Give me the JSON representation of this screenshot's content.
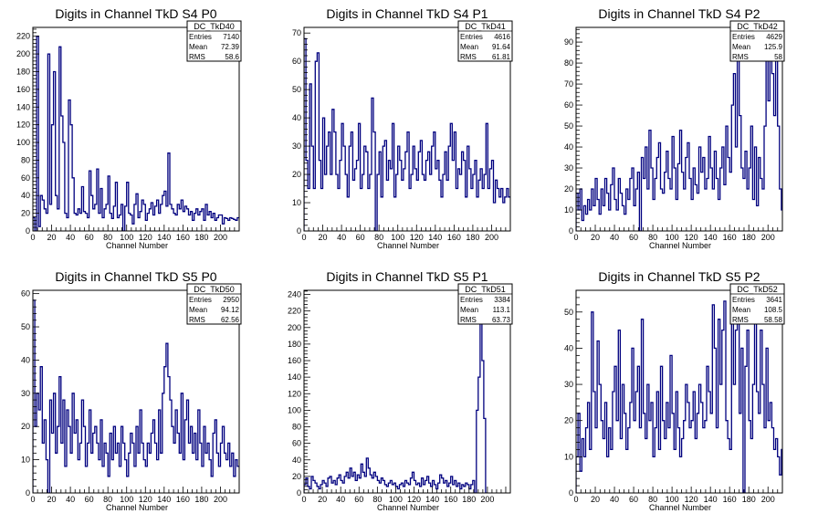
{
  "colors": {
    "histogram": "#00007f",
    "frame": "#000000",
    "background": "#ffffff"
  },
  "chart_data": [
    {
      "type": "histogram",
      "title": "Digits in Channel TkD S4 P0",
      "xlabel": "Channel Number",
      "ylabel": "",
      "xlim": [
        0,
        220
      ],
      "ylim": [
        0,
        230
      ],
      "xticks": [
        0,
        20,
        40,
        60,
        80,
        100,
        120,
        140,
        160,
        180,
        200
      ],
      "yticks": [
        0,
        20,
        40,
        60,
        80,
        100,
        120,
        140,
        160,
        180,
        200,
        220
      ],
      "stats": {
        "name": "DC_TkD40",
        "rows": [
          [
            "Entries",
            "7140"
          ],
          [
            "Mean",
            "72.39"
          ],
          [
            "RMS",
            "58.6"
          ]
        ]
      },
      "bin_width": 2,
      "values": [
        15,
        0,
        220,
        5,
        40,
        35,
        25,
        20,
        200,
        30,
        120,
        180,
        40,
        25,
        208,
        130,
        100,
        20,
        15,
        148,
        120,
        60,
        20,
        18,
        25,
        20,
        50,
        22,
        20,
        15,
        68,
        40,
        25,
        30,
        70,
        20,
        48,
        15,
        25,
        30,
        62,
        20,
        14,
        28,
        55,
        15,
        18,
        30,
        0,
        28,
        55,
        20,
        18,
        8,
        30,
        42,
        15,
        22,
        35,
        30,
        12,
        20,
        25,
        32,
        18,
        28,
        35,
        20,
        30,
        40,
        45,
        28,
        88,
        30,
        25,
        20,
        18,
        30,
        25,
        35,
        22,
        28,
        25,
        18,
        22,
        12,
        20,
        25,
        18,
        22,
        25,
        12,
        30,
        18,
        22,
        15,
        20,
        12,
        15,
        18,
        18,
        8,
        15,
        14,
        12,
        15,
        14,
        13,
        12,
        15
      ]
    },
    {
      "type": "histogram",
      "title": "Digits in Channel TkD S4 P1",
      "xlabel": "Channel Number",
      "ylabel": "",
      "xlim": [
        0,
        220
      ],
      "ylim": [
        0,
        72
      ],
      "xticks": [
        0,
        20,
        40,
        60,
        80,
        100,
        120,
        140,
        160,
        180,
        200
      ],
      "yticks": [
        0,
        10,
        20,
        30,
        40,
        50,
        60,
        70
      ],
      "stats": {
        "name": "DC_TkD41",
        "rows": [
          [
            "Entries",
            "4616"
          ],
          [
            "Mean",
            "91.64"
          ],
          [
            "RMS",
            "61.81"
          ]
        ]
      },
      "bin_width": 2,
      "values": [
        68,
        25,
        15,
        52,
        30,
        15,
        60,
        63,
        25,
        15,
        40,
        20,
        30,
        35,
        20,
        43,
        35,
        20,
        15,
        25,
        38,
        30,
        20,
        12,
        30,
        35,
        18,
        22,
        25,
        38,
        15,
        20,
        30,
        28,
        15,
        20,
        47,
        35,
        0,
        20,
        28,
        12,
        30,
        32,
        18,
        25,
        22,
        38,
        12,
        20,
        30,
        25,
        18,
        22,
        28,
        35,
        15,
        20,
        30,
        22,
        18,
        28,
        32,
        20,
        18,
        25,
        28,
        20,
        30,
        35,
        22,
        25,
        18,
        12,
        20,
        28,
        18,
        30,
        38,
        25,
        35,
        15,
        22,
        20,
        28,
        25,
        12,
        30,
        22,
        15,
        20,
        25,
        12,
        18,
        22,
        15,
        20,
        38,
        15,
        22,
        25,
        10,
        18,
        15,
        12,
        15,
        10,
        12,
        15,
        12
      ]
    },
    {
      "type": "histogram",
      "title": "Digits in Channel TkD S4 P2",
      "xlabel": "Channel Number",
      "ylabel": "",
      "xlim": [
        0,
        215
      ],
      "ylim": [
        0,
        97
      ],
      "xticks": [
        0,
        20,
        40,
        60,
        80,
        100,
        120,
        140,
        160,
        180,
        200
      ],
      "yticks": [
        0,
        10,
        20,
        30,
        40,
        50,
        60,
        70,
        80,
        90
      ],
      "stats": {
        "name": "DC_TkD42",
        "rows": [
          [
            "Entries",
            "4629"
          ],
          [
            "Mean",
            "125.9"
          ],
          [
            "RMS",
            "58"
          ]
        ]
      },
      "bin_width": 2,
      "values": [
        18,
        10,
        20,
        5,
        12,
        8,
        15,
        10,
        20,
        12,
        25,
        15,
        8,
        20,
        12,
        25,
        18,
        10,
        22,
        30,
        15,
        10,
        25,
        18,
        12,
        8,
        20,
        15,
        25,
        30,
        12,
        20,
        28,
        0,
        35,
        25,
        40,
        20,
        48,
        30,
        15,
        25,
        35,
        42,
        20,
        18,
        28,
        38,
        25,
        20,
        45,
        30,
        15,
        32,
        48,
        28,
        20,
        35,
        42,
        25,
        15,
        30,
        22,
        18,
        40,
        28,
        35,
        20,
        25,
        45,
        30,
        20,
        38,
        25,
        15,
        30,
        40,
        22,
        50,
        35,
        28,
        60,
        75,
        40,
        90,
        55,
        30,
        25,
        38,
        20,
        30,
        50,
        15,
        40,
        12,
        35,
        25,
        20,
        50,
        85,
        62,
        82,
        75,
        55,
        92,
        50,
        20,
        10,
        5,
        2
      ]
    },
    {
      "type": "histogram",
      "title": "Digits in Channel TkD S5 P0",
      "xlabel": "Channel Number",
      "ylabel": "",
      "xlim": [
        0,
        220
      ],
      "ylim": [
        0,
        61
      ],
      "xticks": [
        0,
        20,
        40,
        60,
        80,
        100,
        120,
        140,
        160,
        180,
        200
      ],
      "yticks": [
        0,
        10,
        20,
        30,
        40,
        50,
        60
      ],
      "stats": {
        "name": "DC_TkD50",
        "rows": [
          [
            "Entries",
            "2950"
          ],
          [
            "Mean",
            "94.12"
          ],
          [
            "RMS",
            "62.56"
          ]
        ]
      },
      "bin_width": 2,
      "values": [
        58,
        20,
        30,
        25,
        38,
        15,
        22,
        10,
        0,
        28,
        18,
        30,
        12,
        20,
        35,
        15,
        28,
        8,
        25,
        20,
        12,
        30,
        18,
        22,
        10,
        15,
        28,
        20,
        8,
        15,
        25,
        12,
        18,
        20,
        15,
        10,
        22,
        8,
        15,
        12,
        5,
        18,
        10,
        20,
        12,
        15,
        8,
        20,
        15,
        10,
        5,
        12,
        18,
        15,
        8,
        20,
        12,
        25,
        15,
        10,
        8,
        15,
        12,
        18,
        22,
        15,
        10,
        25,
        12,
        30,
        38,
        45,
        35,
        28,
        20,
        15,
        25,
        18,
        12,
        30,
        10,
        22,
        28,
        15,
        20,
        12,
        18,
        10,
        25,
        15,
        8,
        20,
        12,
        15,
        10,
        5,
        18,
        22,
        12,
        8,
        15,
        20,
        12,
        10,
        15,
        8,
        12,
        5,
        10,
        8
      ]
    },
    {
      "type": "histogram",
      "title": "Digits in Channel TkD S5 P1",
      "xlabel": "Channel Number",
      "ylabel": "",
      "xlim": [
        0,
        225
      ],
      "ylim": [
        0,
        245
      ],
      "xticks": [
        0,
        20,
        40,
        60,
        80,
        100,
        120,
        140,
        160,
        180,
        200
      ],
      "yticks": [
        0,
        20,
        40,
        60,
        80,
        100,
        120,
        140,
        160,
        180,
        200,
        220,
        240
      ],
      "stats": {
        "name": "DC_TkD51",
        "rows": [
          [
            "Entries",
            "3384"
          ],
          [
            "Mean",
            "113.1"
          ],
          [
            "RMS",
            "63.73"
          ]
        ]
      },
      "bin_width": 2,
      "values": [
        10,
        18,
        8,
        5,
        20,
        15,
        12,
        8,
        5,
        10,
        15,
        12,
        8,
        18,
        20,
        12,
        15,
        10,
        18,
        22,
        15,
        12,
        20,
        25,
        18,
        30,
        20,
        25,
        15,
        22,
        18,
        35,
        25,
        20,
        42,
        30,
        22,
        18,
        25,
        20,
        15,
        12,
        18,
        15,
        10,
        8,
        12,
        15,
        10,
        12,
        8,
        5,
        10,
        12,
        8,
        15,
        12,
        10,
        18,
        25,
        15,
        10,
        12,
        8,
        18,
        10,
        15,
        20,
        12,
        8,
        15,
        10,
        5,
        12,
        22,
        18,
        12,
        15,
        8,
        12,
        20,
        10,
        15,
        8,
        12,
        5,
        10,
        8,
        12,
        10,
        5,
        10,
        15,
        0,
        100,
        140,
        210,
        160,
        90,
        0
      ]
    },
    {
      "type": "histogram",
      "title": "Digits in Channel TkD S5 P2",
      "xlabel": "Channel Number",
      "ylabel": "",
      "xlim": [
        0,
        215
      ],
      "ylim": [
        0,
        56
      ],
      "xticks": [
        0,
        20,
        40,
        60,
        80,
        100,
        120,
        140,
        160,
        180,
        200
      ],
      "yticks": [
        0,
        10,
        20,
        30,
        40,
        50
      ],
      "stats": {
        "name": "DC_TkD52",
        "rows": [
          [
            "Entries",
            "3641"
          ],
          [
            "Mean",
            "108.5"
          ],
          [
            "RMS",
            "58.58"
          ]
        ]
      },
      "bin_width": 2,
      "values": [
        10,
        22,
        6,
        15,
        10,
        18,
        25,
        12,
        50,
        28,
        18,
        42,
        30,
        20,
        15,
        25,
        10,
        18,
        12,
        28,
        35,
        20,
        45,
        15,
        30,
        22,
        12,
        18,
        25,
        40,
        20,
        28,
        35,
        18,
        48,
        22,
        15,
        30,
        20,
        25,
        10,
        18,
        28,
        12,
        35,
        20,
        15,
        25,
        18,
        38,
        22,
        12,
        28,
        18,
        10,
        15,
        20,
        30,
        25,
        18,
        20,
        28,
        15,
        22,
        30,
        25,
        18,
        20,
        35,
        28,
        22,
        52,
        40,
        18,
        48,
        30,
        45,
        53,
        20,
        15,
        12,
        48,
        30,
        45,
        53,
        22,
        40,
        0,
        35,
        45,
        20,
        15,
        30,
        50,
        28,
        22,
        45,
        30,
        18,
        40,
        20,
        25,
        18,
        12,
        15,
        10,
        5,
        12,
        15,
        10
      ]
    }
  ]
}
